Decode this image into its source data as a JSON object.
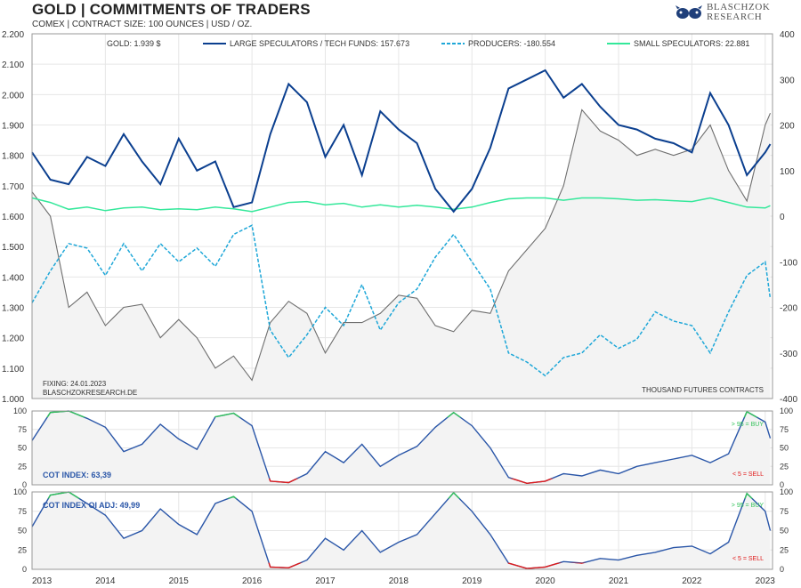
{
  "header": {
    "title": "GOLD | COMMITMENTS OF TRADERS",
    "subtitle": "COMEX | CONTRACT SIZE: 100 OUNCES | USD / OZ."
  },
  "logo": {
    "line1": "BLASCHZOK",
    "line2": "RESEARCH"
  },
  "colors": {
    "gold": "#6e6e6e",
    "large_specs": "#0b3f8f",
    "producers": "#1ea7d8",
    "small_specs": "#33e89a",
    "cot_line": "#2a56a8",
    "buy": "#33c25a",
    "sell": "#e01a1a",
    "grid": "#e6e6e6",
    "fill": "#f3f3f3"
  },
  "chart_data": [
    {
      "type": "line",
      "title": "GOLD | COMMITMENTS OF TRADERS",
      "x_range": [
        2013.0,
        2023.1
      ],
      "x_ticks": [
        "2013",
        "2014",
        "2015",
        "2016",
        "2017",
        "2018",
        "2019",
        "2020",
        "2021",
        "2022",
        "2023"
      ],
      "y_left_range": [
        1000,
        2200
      ],
      "y_left_ticks": [
        "1.000",
        "1.100",
        "1.200",
        "1.300",
        "1.400",
        "1.500",
        "1.600",
        "1.700",
        "1.800",
        "1.900",
        "2.000",
        "2.100",
        "2.200"
      ],
      "y_right_range": [
        -400,
        400
      ],
      "y_right_ticks": [
        "-400",
        "-300",
        "-200",
        "-100",
        "0",
        "100",
        "200",
        "300",
        "400"
      ],
      "legend": [
        {
          "key": "gold",
          "label": "GOLD: 1.939 $",
          "style": "solid"
        },
        {
          "key": "large_specs",
          "label": "LARGE SPECULATORS / TECH FUNDS: 157.673",
          "style": "solid"
        },
        {
          "key": "producers",
          "label": "PRODUCERS: -180.554",
          "style": "dashed"
        },
        {
          "key": "small_specs",
          "label": "SMALL SPECULATORS: 22.881",
          "style": "solid"
        }
      ],
      "annotations": {
        "fixing": "FIXING: 24.01.2023",
        "source": "BLASCHZOKRESEARCH.DE",
        "units": "THOUSAND  FUTURES  CONTRACTS"
      },
      "series": {
        "gold_usd": {
          "x": [
            2013.0,
            2013.25,
            2013.5,
            2013.75,
            2014.0,
            2014.25,
            2014.5,
            2014.75,
            2015.0,
            2015.25,
            2015.5,
            2015.75,
            2016.0,
            2016.25,
            2016.5,
            2016.75,
            2017.0,
            2017.25,
            2017.5,
            2017.75,
            2018.0,
            2018.25,
            2018.5,
            2018.75,
            2019.0,
            2019.25,
            2019.5,
            2019.75,
            2020.0,
            2020.25,
            2020.5,
            2020.75,
            2021.0,
            2021.25,
            2021.5,
            2021.75,
            2022.0,
            2022.25,
            2022.5,
            2022.75,
            2023.0,
            2023.07
          ],
          "values": [
            1680,
            1600,
            1300,
            1350,
            1240,
            1300,
            1310,
            1200,
            1260,
            1200,
            1100,
            1140,
            1060,
            1250,
            1320,
            1280,
            1150,
            1250,
            1250,
            1280,
            1340,
            1330,
            1240,
            1220,
            1290,
            1280,
            1420,
            1490,
            1560,
            1700,
            1950,
            1880,
            1850,
            1800,
            1820,
            1800,
            1820,
            1900,
            1750,
            1650,
            1900,
            1939
          ]
        },
        "large_specs_k": {
          "x": [
            2013.0,
            2013.25,
            2013.5,
            2013.75,
            2014.0,
            2014.25,
            2014.5,
            2014.75,
            2015.0,
            2015.25,
            2015.5,
            2015.75,
            2016.0,
            2016.25,
            2016.5,
            2016.75,
            2017.0,
            2017.25,
            2017.5,
            2017.75,
            2018.0,
            2018.25,
            2018.5,
            2018.75,
            2019.0,
            2019.25,
            2019.5,
            2019.75,
            2020.0,
            2020.25,
            2020.5,
            2020.75,
            2021.0,
            2021.25,
            2021.5,
            2021.75,
            2022.0,
            2022.25,
            2022.5,
            2022.75,
            2023.0,
            2023.07
          ],
          "values": [
            140,
            80,
            70,
            130,
            110,
            180,
            120,
            70,
            170,
            100,
            120,
            20,
            30,
            180,
            290,
            250,
            130,
            200,
            90,
            230,
            190,
            160,
            60,
            10,
            60,
            150,
            280,
            300,
            320,
            260,
            290,
            240,
            200,
            190,
            170,
            160,
            140,
            270,
            200,
            90,
            140,
            158
          ]
        },
        "producers_k": {
          "x": [
            2013.0,
            2013.25,
            2013.5,
            2013.75,
            2014.0,
            2014.25,
            2014.5,
            2014.75,
            2015.0,
            2015.25,
            2015.5,
            2015.75,
            2016.0,
            2016.25,
            2016.5,
            2016.75,
            2017.0,
            2017.25,
            2017.5,
            2017.75,
            2018.0,
            2018.25,
            2018.5,
            2018.75,
            2019.0,
            2019.25,
            2019.5,
            2019.75,
            2020.0,
            2020.25,
            2020.5,
            2020.75,
            2021.0,
            2021.25,
            2021.5,
            2021.75,
            2022.0,
            2022.25,
            2022.5,
            2022.75,
            2023.0,
            2023.07
          ],
          "values": [
            -190,
            -120,
            -60,
            -70,
            -130,
            -60,
            -120,
            -60,
            -100,
            -70,
            -110,
            -40,
            -20,
            -250,
            -310,
            -260,
            -200,
            -240,
            -150,
            -250,
            -190,
            -160,
            -90,
            -40,
            -100,
            -160,
            -300,
            -320,
            -350,
            -310,
            -300,
            -260,
            -290,
            -270,
            -210,
            -230,
            -240,
            -300,
            -210,
            -130,
            -100,
            -181
          ]
        },
        "small_specs_k": {
          "x": [
            2013.0,
            2013.25,
            2013.5,
            2013.75,
            2014.0,
            2014.25,
            2014.5,
            2014.75,
            2015.0,
            2015.25,
            2015.5,
            2015.75,
            2016.0,
            2016.25,
            2016.5,
            2016.75,
            2017.0,
            2017.25,
            2017.5,
            2017.75,
            2018.0,
            2018.25,
            2018.5,
            2018.75,
            2019.0,
            2019.25,
            2019.5,
            2019.75,
            2020.0,
            2020.25,
            2020.5,
            2020.75,
            2021.0,
            2021.25,
            2021.5,
            2021.75,
            2022.0,
            2022.25,
            2022.5,
            2022.75,
            2023.0,
            2023.07
          ],
          "values": [
            40,
            30,
            15,
            20,
            12,
            18,
            20,
            14,
            16,
            14,
            20,
            16,
            10,
            20,
            30,
            32,
            25,
            28,
            20,
            25,
            20,
            24,
            20,
            15,
            20,
            30,
            38,
            40,
            40,
            35,
            40,
            40,
            38,
            35,
            36,
            34,
            32,
            40,
            30,
            20,
            18,
            23
          ]
        }
      }
    },
    {
      "type": "line",
      "title": "COT INDEX: 63,39",
      "y_range": [
        0,
        100
      ],
      "y_ticks": [
        "0",
        "25",
        "50",
        "75",
        "100"
      ],
      "threshold_labels": [
        "> 95 = BUY",
        "< 5 = SELL"
      ],
      "thresholds": {
        "buy": 95,
        "sell": 5
      },
      "series": {
        "cot_index": {
          "x": [
            2013.0,
            2013.25,
            2013.5,
            2013.75,
            2014.0,
            2014.25,
            2014.5,
            2014.75,
            2015.0,
            2015.25,
            2015.5,
            2015.75,
            2016.0,
            2016.25,
            2016.5,
            2016.75,
            2017.0,
            2017.25,
            2017.5,
            2017.75,
            2018.0,
            2018.25,
            2018.5,
            2018.75,
            2019.0,
            2019.25,
            2019.5,
            2019.75,
            2020.0,
            2020.25,
            2020.5,
            2020.75,
            2021.0,
            2021.25,
            2021.5,
            2021.75,
            2022.0,
            2022.25,
            2022.5,
            2022.75,
            2023.0,
            2023.07
          ],
          "values": [
            60,
            98,
            100,
            90,
            78,
            45,
            55,
            82,
            62,
            48,
            92,
            97,
            80,
            5,
            3,
            15,
            45,
            30,
            55,
            25,
            40,
            52,
            78,
            98,
            80,
            50,
            10,
            2,
            5,
            15,
            12,
            20,
            15,
            25,
            30,
            35,
            40,
            30,
            42,
            99,
            85,
            63
          ]
        }
      }
    },
    {
      "type": "line",
      "title": "COT INDEX OI ADJ: 49,99",
      "y_range": [
        0,
        100
      ],
      "y_ticks": [
        "0",
        "25",
        "50",
        "75",
        "100"
      ],
      "threshold_labels": [
        "> 95 = BUY",
        "< 5 = SELL"
      ],
      "thresholds": {
        "buy": 95,
        "sell": 5
      },
      "series": {
        "cot_index_oi_adj": {
          "x": [
            2013.0,
            2013.25,
            2013.5,
            2013.75,
            2014.0,
            2014.25,
            2014.5,
            2014.75,
            2015.0,
            2015.25,
            2015.5,
            2015.75,
            2016.0,
            2016.25,
            2016.5,
            2016.75,
            2017.0,
            2017.25,
            2017.5,
            2017.75,
            2018.0,
            2018.25,
            2018.5,
            2018.75,
            2019.0,
            2019.25,
            2019.5,
            2019.75,
            2020.0,
            2020.25,
            2020.5,
            2020.75,
            2021.0,
            2021.25,
            2021.5,
            2021.75,
            2022.0,
            2022.25,
            2022.5,
            2022.75,
            2023.0,
            2023.07
          ],
          "values": [
            55,
            96,
            100,
            85,
            70,
            40,
            50,
            78,
            58,
            45,
            85,
            94,
            75,
            3,
            2,
            12,
            40,
            25,
            50,
            22,
            35,
            45,
            72,
            99,
            75,
            45,
            8,
            1,
            3,
            10,
            8,
            14,
            12,
            18,
            22,
            28,
            30,
            20,
            35,
            98,
            75,
            50
          ]
        }
      }
    }
  ]
}
